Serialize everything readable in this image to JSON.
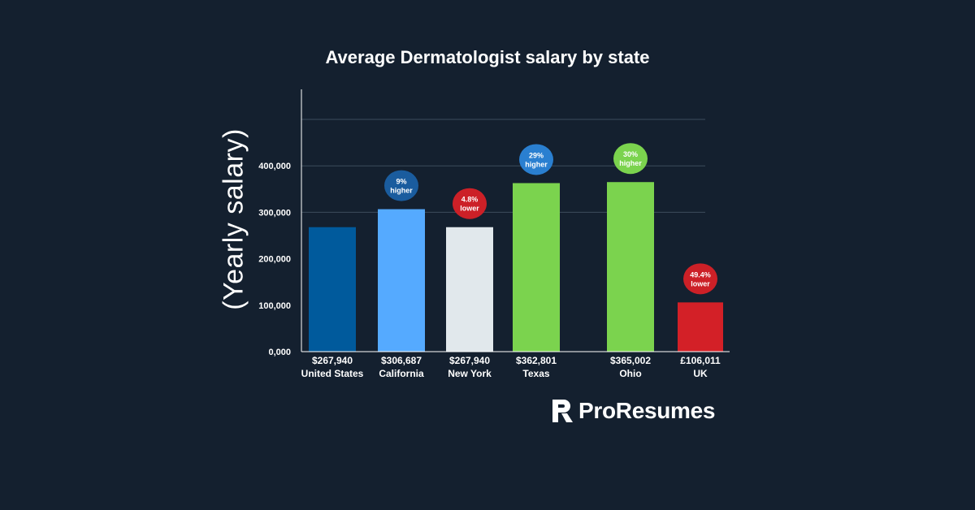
{
  "chart_data": {
    "type": "bar",
    "title": "Average Dermatologist salary by state",
    "ylabel": "(Yearly salary)",
    "xlabel": "",
    "ylim": [
      0,
      400000
    ],
    "yticks": [
      0,
      100000,
      200000,
      300000,
      400000
    ],
    "ytick_labels": [
      "0,000",
      "100,000",
      "200,000",
      "300,000",
      "400,000"
    ],
    "grid": true,
    "bars": [
      {
        "category": "United States",
        "label": "$267,940",
        "value": 267940,
        "color": "#005a9c",
        "badge": null
      },
      {
        "category": "California",
        "label": "$306,687",
        "value": 306687,
        "color": "#55aaff",
        "badge": {
          "line1": "9%",
          "line2": "higher",
          "color": "#1a5c9e"
        }
      },
      {
        "category": "New York",
        "label": "$267,940",
        "value": 267940,
        "color": "#e1e8ec",
        "badge": {
          "line1": "4.8%",
          "line2": "lower",
          "color": "#cc2027"
        }
      },
      {
        "category": "Texas",
        "label": "$362,801",
        "value": 362801,
        "color": "#7bd34e",
        "badge": {
          "line1": "29%",
          "line2": "higher",
          "color": "#2a7fd0"
        }
      },
      {
        "category": "Ohio",
        "label": "$365,002",
        "value": 365002,
        "color": "#7bd34e",
        "badge": {
          "line1": "30%",
          "line2": "higher",
          "color": "#7bd34e"
        }
      },
      {
        "category": "UK",
        "label": "£106,011",
        "value": 106011,
        "color": "#d32027",
        "badge": {
          "line1": "49.4%",
          "line2": "lower",
          "color": "#cc2027"
        }
      }
    ]
  },
  "brand": {
    "name": "ProResumes",
    "icon": "pr-logo-icon"
  }
}
